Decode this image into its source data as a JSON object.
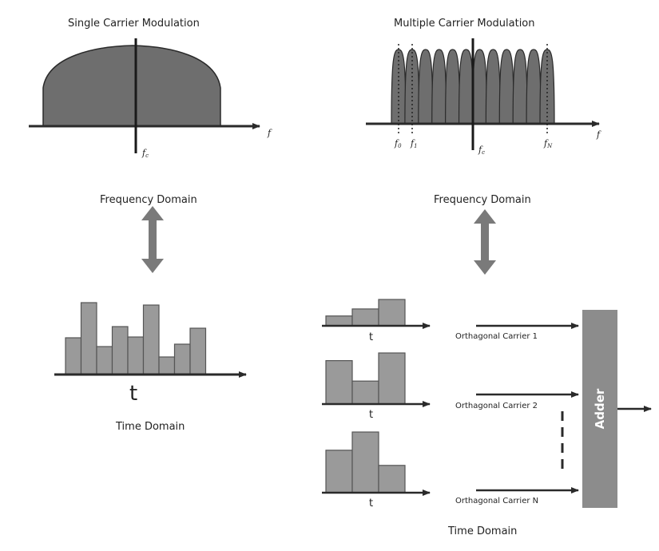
{
  "single": {
    "title": "Single Carrier Modulation",
    "axis_f": "f",
    "fc": "f",
    "fc_sub": "c",
    "freq_domain": "Frequency Domain",
    "t_label": "t",
    "time_domain": "Time Domain",
    "bar_heights": [
      0.46,
      0.9,
      0.35,
      0.6,
      0.47,
      0.87,
      0.22,
      0.38,
      0.58
    ]
  },
  "multi": {
    "title": "Multiple Carrier Modulation",
    "axis_f": "f",
    "f0": "f",
    "f0_sub": "0",
    "f1": "f",
    "f1_sub": "1",
    "fc": "f",
    "fc_sub": "c",
    "fn": "f",
    "fn_sub": "N",
    "freq_domain": "Frequency Domain",
    "time_domain": "Time Domain",
    "subcarrier_count": 12,
    "rows": [
      {
        "t_label": "t",
        "carrier": "Orthagonal Carrier 1",
        "bar_heights": [
          0.28,
          0.48,
          0.75
        ]
      },
      {
        "t_label": "t",
        "carrier": "Orthagonal Carrier 2",
        "bar_heights": [
          0.85,
          0.45,
          1.0
        ]
      },
      {
        "t_label": "t",
        "carrier": "Orthagonal Carrier N",
        "bar_heights": [
          0.7,
          1.0,
          0.45
        ]
      }
    ],
    "adder": "Adder"
  },
  "colors": {
    "fill": "#6e6e6e",
    "bar": "#9a9a9a",
    "stroke": "#2a2a2a",
    "arrow2": "#7a7a7a",
    "adder": "#8c8c8c"
  }
}
